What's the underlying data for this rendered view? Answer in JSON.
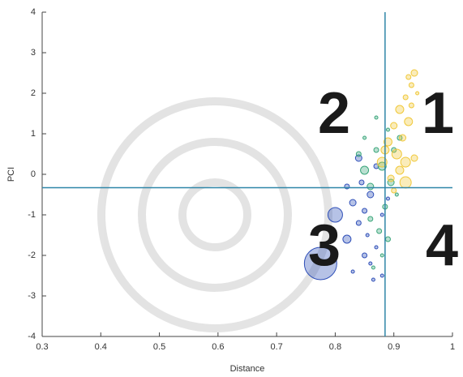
{
  "chart_data": {
    "type": "scatter",
    "x_label": "Distance",
    "y_label": "PCI",
    "xlim": [
      0.3,
      1
    ],
    "xticks": [
      0.3,
      0.4,
      0.5,
      0.6,
      0.7,
      0.8,
      0.9,
      1
    ],
    "ylim": [
      -4,
      4
    ],
    "yticks": [
      -4,
      -3,
      -2,
      -1,
      0,
      1,
      2,
      3,
      4
    ],
    "vline": 0.885,
    "hline": -0.33,
    "line_color": "#2f86a8",
    "annotations": [
      "1",
      "2",
      "3",
      "4"
    ],
    "series": [
      {
        "color": "#2f4fb8",
        "x": [
          0.775,
          0.8,
          0.82,
          0.83,
          0.84,
          0.85,
          0.86,
          0.83,
          0.845,
          0.855,
          0.865,
          0.87,
          0.88,
          0.84,
          0.86,
          0.85,
          0.87,
          0.82,
          0.88,
          0.89
        ],
        "values": [
          -2.2,
          -1.0,
          -1.6,
          -0.7,
          -1.2,
          -2.0,
          -0.5,
          -2.4,
          -0.2,
          -1.5,
          -2.6,
          0.2,
          -1.0,
          0.4,
          -2.2,
          -0.9,
          -1.8,
          -0.3,
          -2.5,
          -0.6
        ],
        "sizes": [
          20,
          9,
          5,
          4,
          3,
          3,
          4,
          2,
          3,
          2,
          2,
          3,
          2,
          4,
          2,
          3,
          2,
          3,
          2,
          2
        ]
      },
      {
        "color": "#3aa57a",
        "x": [
          0.84,
          0.85,
          0.86,
          0.87,
          0.875,
          0.88,
          0.885,
          0.89,
          0.895,
          0.9,
          0.86,
          0.87,
          0.88,
          0.89,
          0.905,
          0.91,
          0.85,
          0.865
        ],
        "values": [
          0.5,
          0.9,
          -0.3,
          0.6,
          -1.4,
          0.2,
          -0.8,
          1.1,
          -0.2,
          0.6,
          -1.1,
          1.4,
          -2.0,
          -1.6,
          -0.5,
          0.9,
          0.1,
          -2.3
        ],
        "sizes": [
          3,
          2,
          4,
          3,
          3,
          5,
          3,
          2,
          4,
          3,
          3,
          2,
          2,
          3,
          2,
          3,
          5,
          2
        ]
      },
      {
        "color": "#f0c83a",
        "x": [
          0.88,
          0.89,
          0.9,
          0.905,
          0.91,
          0.915,
          0.92,
          0.925,
          0.93,
          0.935,
          0.895,
          0.9,
          0.91,
          0.92,
          0.93,
          0.94,
          0.885,
          0.92,
          0.925,
          0.935
        ],
        "values": [
          0.3,
          0.8,
          1.2,
          0.5,
          1.6,
          0.9,
          1.9,
          1.3,
          2.2,
          2.5,
          -0.1,
          -0.4,
          0.1,
          0.3,
          1.7,
          2.0,
          0.6,
          -0.2,
          2.4,
          0.4
        ],
        "sizes": [
          6,
          5,
          4,
          6,
          5,
          4,
          3,
          5,
          3,
          4,
          4,
          3,
          5,
          6,
          3,
          2,
          5,
          7,
          3,
          4
        ]
      }
    ]
  }
}
